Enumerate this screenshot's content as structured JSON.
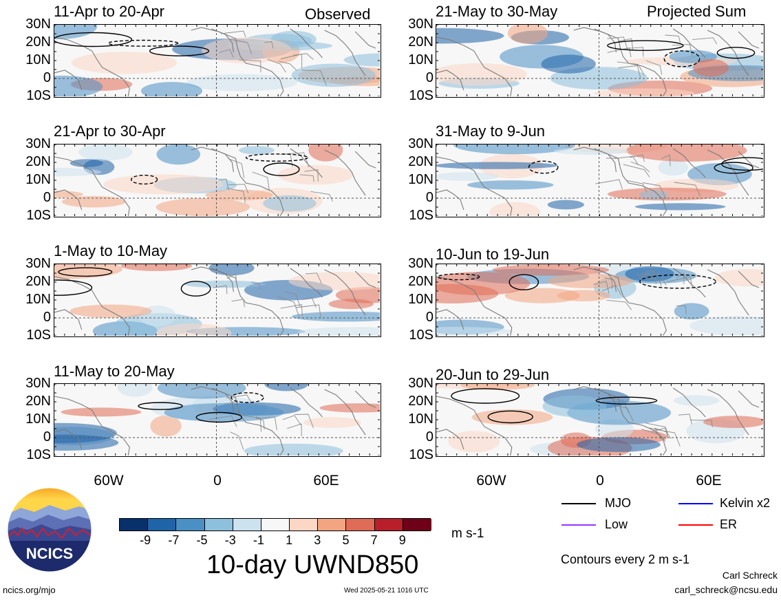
{
  "figure": {
    "left_header": "Observed",
    "right_header": "Projected Sum",
    "title": "10-day UWND850",
    "colorbar_unit": "m s-1",
    "contour_note": "Contours every 2 m s-1",
    "footer_left": "ncics.org/mjo",
    "footer_center": "Wed 2025-05-21 1016 UTC",
    "author": "Carl Schreck",
    "email": "carl_schreck@ncsu.edu",
    "logo_text": "NCICS"
  },
  "panels": {
    "observed": [
      {
        "label": "11-Apr to 20-Apr"
      },
      {
        "label": "21-Apr to 30-Apr"
      },
      {
        "label": "1-May to 10-May"
      },
      {
        "label": "11-May to 20-May"
      }
    ],
    "projected": [
      {
        "label": "21-May to 30-May"
      },
      {
        "label": "31-May to 9-Jun"
      },
      {
        "label": "10-Jun to 19-Jun"
      },
      {
        "label": "20-Jun to 29-Jun"
      }
    ]
  },
  "axes": {
    "lat_labels": [
      "30N",
      "20N",
      "10N",
      "0",
      "10S"
    ],
    "lon_labels": [
      "60W",
      "0",
      "60E"
    ]
  },
  "colorbar": {
    "labels": [
      "-9",
      "-7",
      "-5",
      "-3",
      "-1",
      "1",
      "3",
      "5",
      "7",
      "9"
    ],
    "colors": [
      "#08306b",
      "#1f63a8",
      "#4a90c4",
      "#8cc0dd",
      "#cde2ef",
      "#f7f7f7",
      "#fbd7c4",
      "#f3a582",
      "#e06b56",
      "#b81f2b",
      "#6e0018"
    ]
  },
  "legend": [
    {
      "label": "MJO",
      "color": "#000000"
    },
    {
      "label": "Kelvin x2",
      "color": "#0000ff"
    },
    {
      "label": "Low",
      "color": "#9933ff"
    },
    {
      "label": "ER",
      "color": "#ff0000"
    }
  ]
}
